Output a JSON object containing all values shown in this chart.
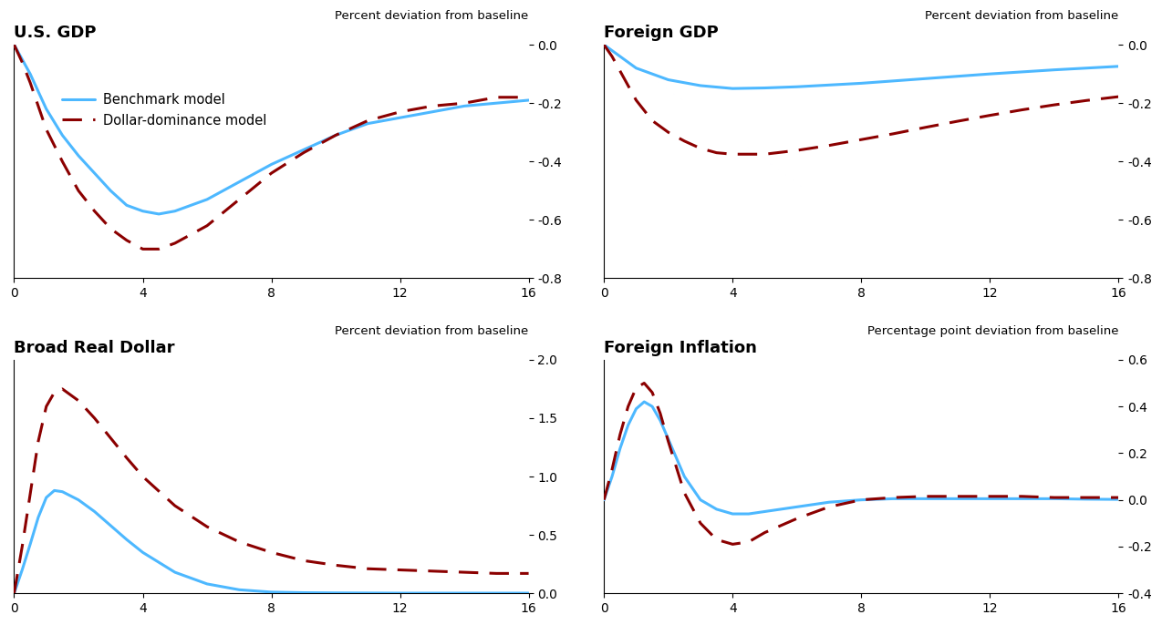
{
  "titles": [
    "U.S. GDP",
    "Foreign GDP",
    "Broad Real Dollar",
    "Foreign Inflation"
  ],
  "ylabels": [
    "Percent deviation from baseline",
    "Percent deviation from baseline",
    "Percent deviation from baseline",
    "Percentage point deviation from baseline"
  ],
  "benchmark_color": "#4db8ff",
  "dominance_color": "#8b0000",
  "xlim": [
    0,
    16
  ],
  "xticks": [
    0,
    4,
    8,
    12,
    16
  ],
  "usgdp_benchmark_x": [
    0,
    0.25,
    0.5,
    0.75,
    1,
    1.5,
    2,
    2.5,
    3,
    3.5,
    4,
    4.5,
    5,
    6,
    7,
    8,
    9,
    10,
    11,
    12,
    13,
    14,
    15,
    16
  ],
  "usgdp_benchmark_y": [
    0,
    -0.05,
    -0.1,
    -0.16,
    -0.22,
    -0.31,
    -0.38,
    -0.44,
    -0.5,
    -0.55,
    -0.57,
    -0.58,
    -0.57,
    -0.53,
    -0.47,
    -0.41,
    -0.36,
    -0.31,
    -0.27,
    -0.25,
    -0.23,
    -0.21,
    -0.2,
    -0.19
  ],
  "usgdp_dominance_x": [
    0,
    0.25,
    0.5,
    0.75,
    1,
    1.5,
    2,
    2.5,
    3,
    3.5,
    4,
    4.5,
    5,
    6,
    7,
    8,
    9,
    10,
    11,
    12,
    13,
    14,
    15,
    16
  ],
  "usgdp_dominance_y": [
    0,
    -0.06,
    -0.13,
    -0.21,
    -0.29,
    -0.4,
    -0.5,
    -0.57,
    -0.63,
    -0.67,
    -0.7,
    -0.7,
    -0.68,
    -0.62,
    -0.53,
    -0.44,
    -0.37,
    -0.31,
    -0.26,
    -0.23,
    -0.21,
    -0.2,
    -0.18,
    -0.18
  ],
  "forgdp_benchmark_x": [
    0,
    0.25,
    0.5,
    0.75,
    1,
    1.5,
    2,
    2.5,
    3,
    3.5,
    4,
    5,
    6,
    7,
    8,
    9,
    10,
    11,
    12,
    13,
    14,
    15,
    16
  ],
  "forgdp_benchmark_y": [
    0,
    -0.02,
    -0.04,
    -0.06,
    -0.08,
    -0.1,
    -0.12,
    -0.13,
    -0.14,
    -0.145,
    -0.15,
    -0.148,
    -0.144,
    -0.138,
    -0.132,
    -0.124,
    -0.116,
    -0.108,
    -0.1,
    -0.093,
    -0.086,
    -0.08,
    -0.074
  ],
  "forgdp_dominance_x": [
    0,
    0.25,
    0.5,
    0.75,
    1,
    1.5,
    2,
    2.5,
    3,
    3.5,
    4,
    5,
    6,
    7,
    8,
    9,
    10,
    11,
    12,
    13,
    14,
    15,
    16
  ],
  "forgdp_dominance_y": [
    0,
    -0.04,
    -0.09,
    -0.14,
    -0.19,
    -0.26,
    -0.3,
    -0.33,
    -0.355,
    -0.37,
    -0.375,
    -0.375,
    -0.362,
    -0.345,
    -0.325,
    -0.305,
    -0.283,
    -0.262,
    -0.242,
    -0.223,
    -0.206,
    -0.191,
    -0.178
  ],
  "dollar_benchmark_x": [
    0,
    0.25,
    0.5,
    0.75,
    1,
    1.25,
    1.5,
    2,
    2.5,
    3,
    3.5,
    4,
    5,
    6,
    7,
    8,
    9,
    10,
    11,
    12,
    13,
    14,
    15,
    16
  ],
  "dollar_benchmark_y": [
    0,
    0.2,
    0.42,
    0.65,
    0.82,
    0.88,
    0.87,
    0.8,
    0.7,
    0.58,
    0.46,
    0.35,
    0.18,
    0.08,
    0.03,
    0.01,
    0.005,
    0.003,
    0.002,
    0.001,
    0.001,
    0.001,
    0.001,
    0.001
  ],
  "dollar_dominance_x": [
    0,
    0.25,
    0.5,
    0.75,
    1,
    1.25,
    1.5,
    2,
    2.5,
    3,
    3.5,
    4,
    5,
    6,
    7,
    8,
    9,
    10,
    11,
    12,
    13,
    14,
    15,
    16
  ],
  "dollar_dominance_y": [
    0,
    0.4,
    0.85,
    1.3,
    1.6,
    1.72,
    1.75,
    1.65,
    1.5,
    1.33,
    1.16,
    1.0,
    0.75,
    0.57,
    0.44,
    0.35,
    0.28,
    0.24,
    0.21,
    0.2,
    0.19,
    0.18,
    0.17,
    0.17
  ],
  "forinf_benchmark_x": [
    0,
    0.25,
    0.5,
    0.75,
    1,
    1.25,
    1.5,
    1.75,
    2,
    2.5,
    3,
    3.5,
    4,
    4.5,
    5,
    6,
    7,
    8,
    9,
    10,
    11,
    12,
    13,
    14,
    15,
    16
  ],
  "forinf_benchmark_y": [
    0,
    0.1,
    0.22,
    0.32,
    0.39,
    0.42,
    0.4,
    0.34,
    0.26,
    0.1,
    0.0,
    -0.04,
    -0.06,
    -0.06,
    -0.05,
    -0.03,
    -0.01,
    0.0,
    0.005,
    0.005,
    0.005,
    0.005,
    0.005,
    0.005,
    0.003,
    0.002
  ],
  "forinf_dominance_x": [
    0,
    0.25,
    0.5,
    0.75,
    1,
    1.25,
    1.5,
    1.75,
    2,
    2.5,
    3,
    3.5,
    4,
    4.5,
    5,
    6,
    7,
    8,
    9,
    10,
    11,
    12,
    13,
    14,
    15,
    16
  ],
  "forinf_dominance_y": [
    0,
    0.13,
    0.28,
    0.4,
    0.48,
    0.5,
    0.46,
    0.37,
    0.25,
    0.03,
    -0.1,
    -0.17,
    -0.19,
    -0.18,
    -0.14,
    -0.08,
    -0.03,
    0.0,
    0.01,
    0.015,
    0.015,
    0.015,
    0.015,
    0.01,
    0.01,
    0.01
  ],
  "usgdp_ylim": [
    -0.8,
    0.0
  ],
  "usgdp_yticks": [
    0.0,
    -0.2,
    -0.4,
    -0.6,
    -0.8
  ],
  "forgdp_ylim": [
    -0.8,
    0.0
  ],
  "forgdp_yticks": [
    0.0,
    -0.2,
    -0.4,
    -0.6,
    -0.8
  ],
  "dollar_ylim": [
    0.0,
    2.0
  ],
  "dollar_yticks": [
    0.0,
    0.5,
    1.0,
    1.5,
    2.0
  ],
  "forinf_ylim": [
    -0.4,
    0.6
  ],
  "forinf_yticks": [
    0.6,
    0.4,
    0.2,
    0.0,
    -0.2,
    -0.4
  ],
  "legend_labels": [
    "Benchmark model",
    "Dollar-dominance model"
  ],
  "benchmark_lw": 2.2,
  "dominance_lw": 2.2
}
